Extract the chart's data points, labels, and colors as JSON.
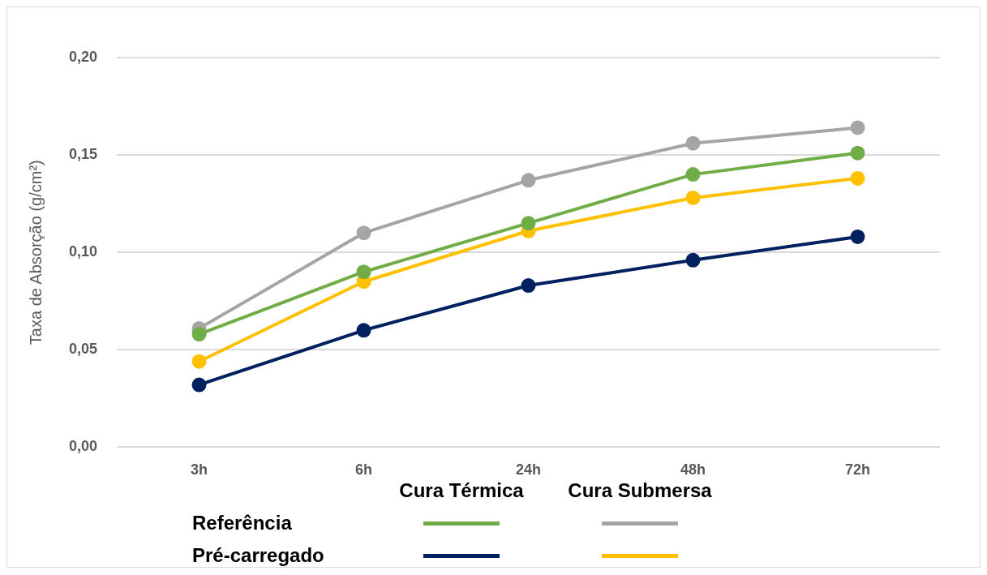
{
  "chart_data": {
    "type": "line",
    "ylabel": "Taxa de Absorção (g/cm²)",
    "categories": [
      "3h",
      "6h",
      "24h",
      "48h",
      "72h"
    ],
    "series": [
      {
        "color": "#70ad47",
        "values": [
          0.058,
          0.09,
          0.115,
          0.14,
          0.151
        ]
      },
      {
        "color": "#a5a5a5",
        "values": [
          0.061,
          0.11,
          0.137,
          0.156,
          0.164
        ]
      },
      {
        "color": "#002060",
        "values": [
          0.032,
          0.06,
          0.083,
          0.096,
          0.108
        ]
      },
      {
        "color": "#ffc000",
        "values": [
          0.044,
          0.085,
          0.111,
          0.128,
          0.138
        ]
      }
    ],
    "ylim": [
      0,
      0.2
    ],
    "yticks": [
      {
        "value": 0,
        "label": "0,00"
      },
      {
        "value": 0.05,
        "label": "0,05"
      },
      {
        "value": 0.1,
        "label": "0,10"
      },
      {
        "value": 0.15,
        "label": "0,15"
      },
      {
        "value": 0.2,
        "label": "0,20"
      }
    ],
    "grid": "y",
    "marker": "circle",
    "annotations": [
      "Cura Térmica",
      "Cura Submersa",
      "Referência",
      "Pré-carregado"
    ]
  }
}
